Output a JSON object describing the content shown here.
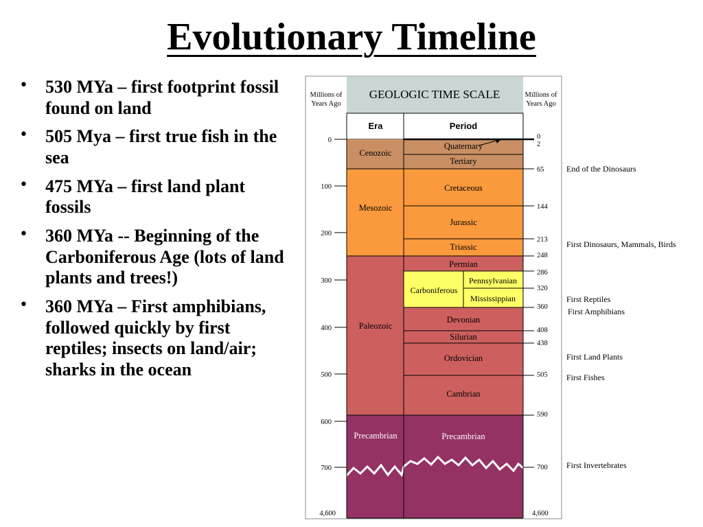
{
  "slide": {
    "title": "Evolutionary Timeline",
    "bullets": [
      "530 MYa – first footprint fossil found on land",
      "505 Mya – first true fish in the sea",
      "475 MYa – first land plant fossils",
      "360 MYa  -- Beginning of the Carboniferous Age (lots of land plants and trees!)",
      "360 MYa – First amphibians, followed quickly by first reptiles; insects on land/air; sharks in the ocean"
    ]
  },
  "timescale": {
    "header": "GEOLOGIC TIME SCALE",
    "left_axis_label_1": "Millions of",
    "left_axis_label_2": "Years Ago",
    "right_axis_label_1": "Millions of",
    "right_axis_label_2": "Years Ago",
    "col_era": "Era",
    "col_period": "Period",
    "left_ticks": [
      "0",
      "100",
      "200",
      "300",
      "400",
      "500",
      "600",
      "700",
      "4,600"
    ],
    "eras": [
      "Cenozoic",
      "Mesozoic",
      "Paleozoic",
      "Precambrian"
    ],
    "periods": [
      "Quaternary",
      "Tertiary",
      "Cretaceous",
      "Jurassic",
      "Triassic",
      "Permian",
      "Carboniferous",
      "Pennsylvanian",
      "Mississippian",
      "Devonian",
      "Silurian",
      "Ordovician",
      "Cambrian",
      "Precambrian"
    ],
    "right_ticks": [
      "0",
      "2",
      "65",
      "144",
      "213",
      "248",
      "286",
      "320",
      "360",
      "408",
      "438",
      "505",
      "590",
      "700",
      "4,600"
    ],
    "events": [
      "End of the Dinosaurs",
      "First Dinosaurs, Mammals, Birds",
      "First Reptiles",
      "First Amphibians",
      "First Land Plants",
      "First Fishes",
      "First Invertebrates"
    ],
    "colors": {
      "header": "#c8d6d6",
      "cenozoic": "#c98f63",
      "mesozoic": "#fb9a3c",
      "paleozoic": "#cd5f5f",
      "carboniferous": "#ffff66",
      "precambrian": "#943264"
    }
  }
}
